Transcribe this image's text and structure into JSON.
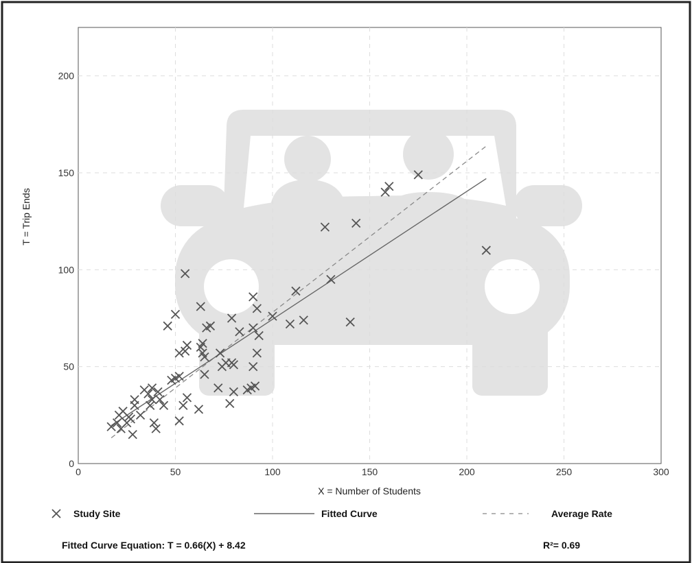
{
  "chart_data": {
    "type": "scatter",
    "title": "",
    "xlabel": "X = Number of Students",
    "ylabel": "T = Trip Ends",
    "xlim": [
      0,
      300
    ],
    "ylim": [
      0,
      225
    ],
    "xticks": [
      0,
      50,
      100,
      150,
      200,
      250,
      300
    ],
    "yticks": [
      0,
      50,
      100,
      150,
      200
    ],
    "grid": true,
    "grid_style": "dashed",
    "legend_position": "bottom",
    "background_watermark": "car-with-two-passengers-icon",
    "colors": {
      "points": "#555555",
      "fitted": "#666666",
      "average": "#888888",
      "watermark": "#e3e3e3",
      "gridline": "#dddddd"
    },
    "series": [
      {
        "name": "Study Site",
        "kind": "scatter",
        "marker": "x",
        "points": [
          [
            17,
            19
          ],
          [
            20,
            21
          ],
          [
            21,
            25
          ],
          [
            22,
            18
          ],
          [
            23,
            27
          ],
          [
            25,
            21
          ],
          [
            26,
            24
          ],
          [
            27,
            23
          ],
          [
            28,
            15
          ],
          [
            29,
            30
          ],
          [
            29,
            33
          ],
          [
            32,
            25
          ],
          [
            34,
            38
          ],
          [
            36,
            36
          ],
          [
            37,
            30
          ],
          [
            38,
            39
          ],
          [
            38,
            33
          ],
          [
            39,
            21
          ],
          [
            40,
            18
          ],
          [
            41,
            37
          ],
          [
            42,
            33
          ],
          [
            44,
            30
          ],
          [
            46,
            71
          ],
          [
            48,
            43
          ],
          [
            50,
            77
          ],
          [
            50,
            44
          ],
          [
            52,
            45
          ],
          [
            52,
            22
          ],
          [
            52,
            57
          ],
          [
            54,
            30
          ],
          [
            55,
            98
          ],
          [
            55,
            58
          ],
          [
            56,
            61
          ],
          [
            56,
            34
          ],
          [
            62,
            28
          ],
          [
            63,
            81
          ],
          [
            63,
            60
          ],
          [
            64,
            62
          ],
          [
            64,
            57
          ],
          [
            65,
            46
          ],
          [
            65,
            55
          ],
          [
            66,
            70
          ],
          [
            68,
            71
          ],
          [
            72,
            39
          ],
          [
            73,
            57
          ],
          [
            74,
            50
          ],
          [
            76,
            52
          ],
          [
            78,
            31
          ],
          [
            79,
            75
          ],
          [
            79,
            52
          ],
          [
            80,
            37
          ],
          [
            80,
            51
          ],
          [
            83,
            68
          ],
          [
            87,
            38
          ],
          [
            89,
            39
          ],
          [
            90,
            86
          ],
          [
            90,
            70
          ],
          [
            90,
            50
          ],
          [
            91,
            40
          ],
          [
            92,
            80
          ],
          [
            92,
            57
          ],
          [
            93,
            66
          ],
          [
            100,
            76
          ],
          [
            109,
            72
          ],
          [
            112,
            89
          ],
          [
            116,
            74
          ],
          [
            127,
            122
          ],
          [
            130,
            95
          ],
          [
            140,
            73
          ],
          [
            143,
            124
          ],
          [
            158,
            140
          ],
          [
            160,
            143
          ],
          [
            175,
            149
          ],
          [
            210,
            110
          ]
        ]
      },
      {
        "name": "Fitted Curve",
        "kind": "line",
        "style": "solid",
        "slope": 0.66,
        "intercept": 8.42,
        "x_range": [
          17,
          210
        ]
      },
      {
        "name": "Average Rate",
        "kind": "line",
        "style": "dashed",
        "slope": 0.78,
        "intercept": 0,
        "x_range": [
          17,
          210
        ]
      }
    ],
    "annotations": {
      "equation": "Fitted Curve Equation: T = 0.66(X) + 8.42",
      "r_squared": "R²= 0.69"
    }
  }
}
